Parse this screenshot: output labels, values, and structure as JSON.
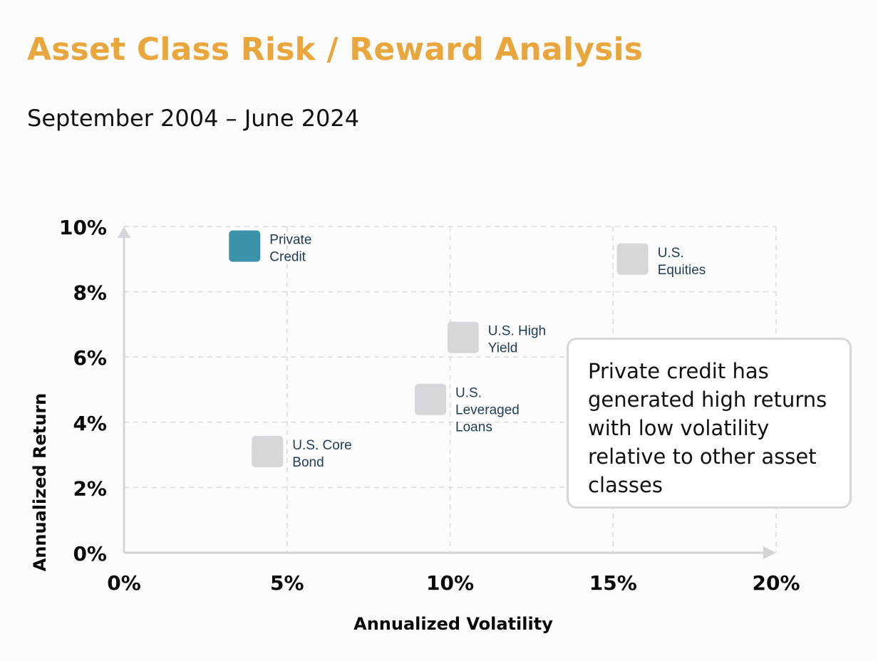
{
  "header": {
    "title": "Asset Class Risk / Reward Analysis",
    "subtitle": "September 2004 – June 2024"
  },
  "callout": {
    "text": "Private credit has generated high returns with low volatility relative to other asset classes"
  },
  "chart_data": {
    "type": "scatter",
    "title": "Asset Class Risk / Reward Analysis",
    "subtitle": "September 2004 – June 2024",
    "xlabel": "Annualized Volatility",
    "ylabel": "Annualized Return",
    "xlim": [
      0,
      20
    ],
    "ylim": [
      0,
      10
    ],
    "x_ticks": [
      0,
      5,
      10,
      15,
      20
    ],
    "y_ticks": [
      0,
      2,
      4,
      6,
      8,
      10
    ],
    "x_tick_labels": [
      "0%",
      "5%",
      "10%",
      "15%",
      "20%"
    ],
    "y_tick_labels": [
      "0%",
      "2%",
      "4%",
      "6%",
      "8%",
      "10%"
    ],
    "grid": true,
    "points": [
      {
        "label_lines": [
          "Private",
          "Credit"
        ],
        "x": 3.7,
        "y": 9.4,
        "highlight": true
      },
      {
        "label_lines": [
          "U.S.",
          "Equities"
        ],
        "x": 15.6,
        "y": 9.0,
        "highlight": false
      },
      {
        "label_lines": [
          "U.S. High",
          "Yield"
        ],
        "x": 10.4,
        "y": 6.6,
        "highlight": false
      },
      {
        "label_lines": [
          "U.S.",
          "Leveraged",
          "Loans"
        ],
        "x": 9.4,
        "y": 4.7,
        "highlight": false
      },
      {
        "label_lines": [
          "U.S. Core",
          "Bond"
        ],
        "x": 4.4,
        "y": 3.1,
        "highlight": false
      }
    ],
    "colors": {
      "highlight": "#3b93a9",
      "default": "#d8d6da",
      "point_label": "#1f3c52",
      "axis": "#d6d4d8",
      "grid": "#dcdadd",
      "tick_label": "#0a0a0a"
    }
  }
}
